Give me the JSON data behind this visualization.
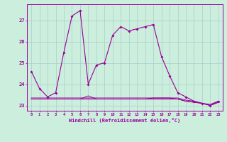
{
  "xlabel": "Windchill (Refroidissement éolien,°C)",
  "bg_color": "#cceedd",
  "grid_color": "#aacccc",
  "line_color": "#990099",
  "x": [
    0,
    1,
    2,
    3,
    4,
    5,
    6,
    7,
    8,
    9,
    10,
    11,
    12,
    13,
    14,
    15,
    16,
    17,
    18,
    19,
    20,
    21,
    22,
    23
  ],
  "series1": [
    24.6,
    23.8,
    23.4,
    23.6,
    25.5,
    27.2,
    27.45,
    24.0,
    24.9,
    25.0,
    26.3,
    26.7,
    26.5,
    26.6,
    26.7,
    26.8,
    25.3,
    24.4,
    23.6,
    23.4,
    23.2,
    23.1,
    23.0,
    23.2
  ],
  "series2": [
    23.35,
    23.35,
    23.35,
    23.35,
    23.35,
    23.35,
    23.35,
    23.35,
    23.35,
    23.35,
    23.35,
    23.35,
    23.35,
    23.35,
    23.35,
    23.35,
    23.35,
    23.35,
    23.35,
    23.25,
    23.2,
    23.1,
    23.05,
    23.2
  ],
  "series3": [
    23.3,
    23.3,
    23.3,
    23.3,
    23.3,
    23.3,
    23.3,
    23.3,
    23.3,
    23.3,
    23.3,
    23.3,
    23.3,
    23.3,
    23.3,
    23.3,
    23.3,
    23.3,
    23.3,
    23.2,
    23.15,
    23.1,
    23.0,
    23.15
  ],
  "series4": [
    23.3,
    23.3,
    23.3,
    23.3,
    23.3,
    23.3,
    23.3,
    23.45,
    23.3,
    23.3,
    23.3,
    23.3,
    23.3,
    23.3,
    23.3,
    23.35,
    23.35,
    23.35,
    23.3,
    23.2,
    23.15,
    23.1,
    23.0,
    23.15
  ],
  "ylim": [
    22.75,
    27.75
  ],
  "yticks": [
    23,
    24,
    25,
    26,
    27
  ],
  "figsize": [
    3.2,
    2.0
  ],
  "dpi": 100
}
